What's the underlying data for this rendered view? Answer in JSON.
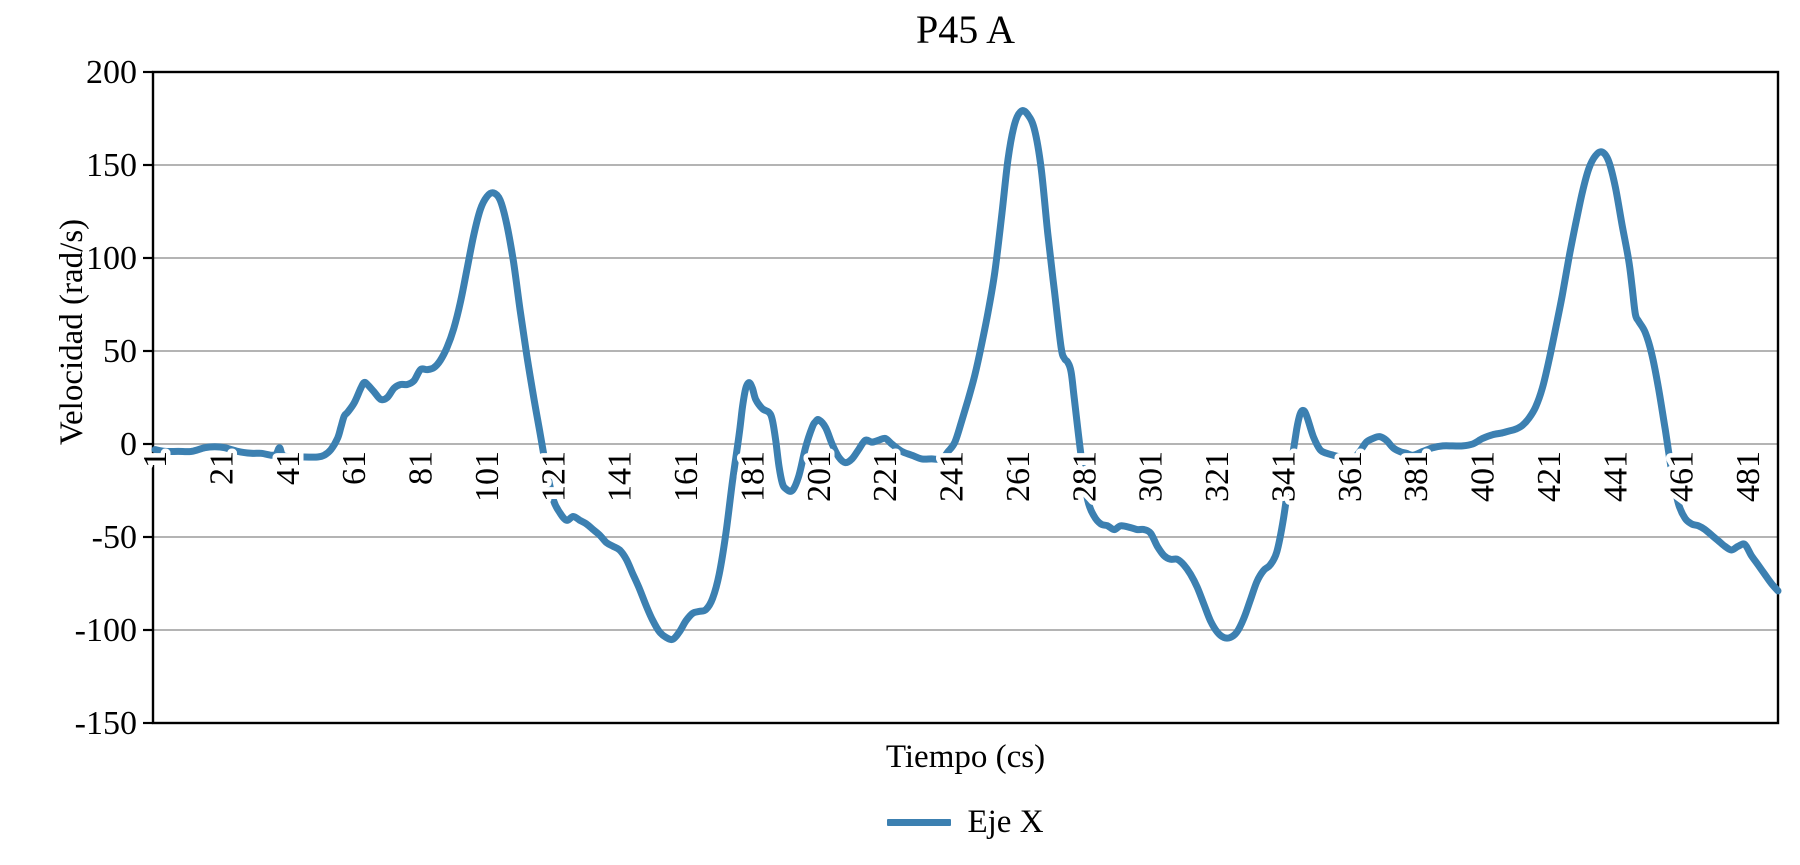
{
  "chart_data": {
    "type": "line",
    "title": "P45 A",
    "xlabel": "Tiempo (cs)",
    "ylabel": "Velocidad (rad/s)",
    "legend_position": "bottom",
    "grid": "horizontal",
    "background": "#FFFFFF",
    "colors": {
      "series": "#3C80B1",
      "gridline": "#9C9C9C",
      "axis": "#000000",
      "label_halo": "#FFFFFF",
      "text": "#000000"
    },
    "ylim": [
      -150,
      200
    ],
    "yticks": [
      200,
      150,
      100,
      50,
      0,
      -50,
      -100,
      -150
    ],
    "xlim": [
      1,
      490
    ],
    "xticks": [
      1,
      21,
      41,
      61,
      81,
      101,
      121,
      141,
      161,
      181,
      201,
      221,
      241,
      261,
      281,
      301,
      321,
      341,
      361,
      381,
      401,
      421,
      441,
      461,
      481
    ],
    "series": [
      {
        "name": "Eje X",
        "color": "#3C80B1",
        "x": [
          1,
          4,
          8,
          12,
          16,
          19,
          22,
          26,
          30,
          33,
          36,
          37.5,
          38.5,
          39.5,
          42,
          46,
          50,
          52,
          54,
          56,
          57,
          58,
          59,
          61,
          63,
          64,
          65,
          67,
          69,
          71,
          73,
          75,
          77,
          79,
          81,
          83,
          85,
          87,
          89,
          91,
          93,
          95,
          97,
          99,
          101,
          103,
          105,
          107,
          109,
          111,
          113,
          115,
          117,
          119,
          121,
          123,
          125,
          127,
          129,
          131,
          133,
          135,
          137,
          139,
          141,
          143,
          145,
          147,
          149,
          151,
          153,
          155,
          157,
          159,
          161,
          163,
          165,
          167,
          169,
          171,
          173,
          175,
          177,
          178,
          179,
          180,
          181,
          182,
          184,
          186,
          187,
          188,
          189,
          190,
          191,
          193,
          195,
          197,
          199,
          200,
          201,
          203,
          205,
          207,
          209,
          211,
          213,
          215,
          217,
          219,
          221,
          223,
          226,
          229,
          232,
          235,
          238,
          240,
          242,
          244,
          246,
          248,
          250,
          252,
          254,
          256,
          258,
          260,
          262,
          264,
          266,
          268,
          270,
          272,
          274,
          275,
          276,
          277,
          278,
          280,
          282,
          284,
          286,
          288,
          290,
          292,
          295,
          297,
          299,
          301,
          303,
          305,
          307,
          309,
          311,
          313,
          315,
          317,
          319,
          321,
          323,
          325,
          327,
          329,
          331,
          333,
          335,
          337,
          339,
          341,
          343,
          345,
          346,
          347,
          348,
          350,
          352,
          354,
          356,
          358,
          360,
          362,
          364,
          366,
          368,
          370,
          372,
          374,
          376,
          378,
          380,
          383,
          386,
          389,
          392,
          395,
          398,
          401,
          404,
          407,
          409,
          411,
          413,
          415,
          417,
          419,
          421,
          423,
          425,
          427,
          429,
          431,
          433,
          435,
          437,
          439,
          441,
          443,
          445,
          446,
          447,
          448,
          450,
          452,
          454,
          456,
          458,
          460,
          462,
          464,
          466,
          468,
          470,
          472,
          474,
          476,
          478,
          480,
          482,
          484,
          486,
          488,
          490
        ],
        "y": [
          -3,
          -4,
          -4,
          -4,
          -2,
          -1.5,
          -2,
          -4,
          -5,
          -5,
          -6,
          -5.5,
          -2,
          -6,
          -7,
          -7,
          -7,
          -6,
          -3,
          3,
          9,
          15,
          17,
          22,
          30,
          33,
          32,
          28,
          24,
          25,
          30,
          32,
          32,
          34,
          40,
          40,
          41,
          45,
          52,
          62,
          76,
          94,
          112,
          126,
          133,
          135,
          131,
          118,
          98,
          72,
          48,
          26,
          6,
          -14,
          -30,
          -37,
          -41,
          -39,
          -41,
          -43,
          -46,
          -49,
          -53,
          -55,
          -57,
          -62,
          -70,
          -78,
          -87,
          -95,
          -101,
          -104,
          -105,
          -101,
          -95,
          -91,
          -90,
          -89,
          -83,
          -70,
          -48,
          -20,
          5,
          20,
          30,
          33,
          30,
          24,
          19,
          17,
          13,
          2,
          -12,
          -21,
          -24,
          -25,
          -17,
          -2,
          9,
          12,
          13,
          9,
          0,
          -7,
          -10,
          -8,
          -3,
          2,
          1,
          2,
          3,
          0,
          -4,
          -6,
          -8,
          -8,
          -8,
          -4,
          1,
          12,
          24,
          37,
          53,
          71,
          92,
          121,
          153,
          172,
          179,
          177,
          169,
          148,
          113,
          82,
          52,
          46,
          44,
          39,
          24,
          -6,
          -30,
          -39,
          -43,
          -44,
          -46,
          -44,
          -45,
          -46,
          -46,
          -48,
          -55,
          -60,
          -62,
          -62,
          -65,
          -70,
          -77,
          -86,
          -95,
          -101,
          -104,
          -104,
          -101,
          -94,
          -84,
          -74,
          -68,
          -65,
          -58,
          -40,
          -15,
          8,
          16,
          18,
          15,
          4,
          -3,
          -5,
          -6,
          -7,
          -8,
          -8,
          -4,
          1,
          3,
          4,
          2,
          -2,
          -4,
          -5,
          -6,
          -4,
          -2,
          -1,
          -1,
          -1,
          0,
          3,
          5,
          6,
          7,
          8,
          10,
          14,
          20,
          30,
          45,
          62,
          80,
          100,
          118,
          135,
          148,
          155,
          157,
          152,
          138,
          118,
          99,
          85,
          70,
          66,
          60,
          48,
          30,
          8,
          -15,
          -32,
          -40,
          -43,
          -44,
          -46,
          -49,
          -52,
          -55,
          -57,
          -55,
          -54,
          -60,
          -65,
          -70,
          -75,
          -79
        ]
      }
    ]
  }
}
